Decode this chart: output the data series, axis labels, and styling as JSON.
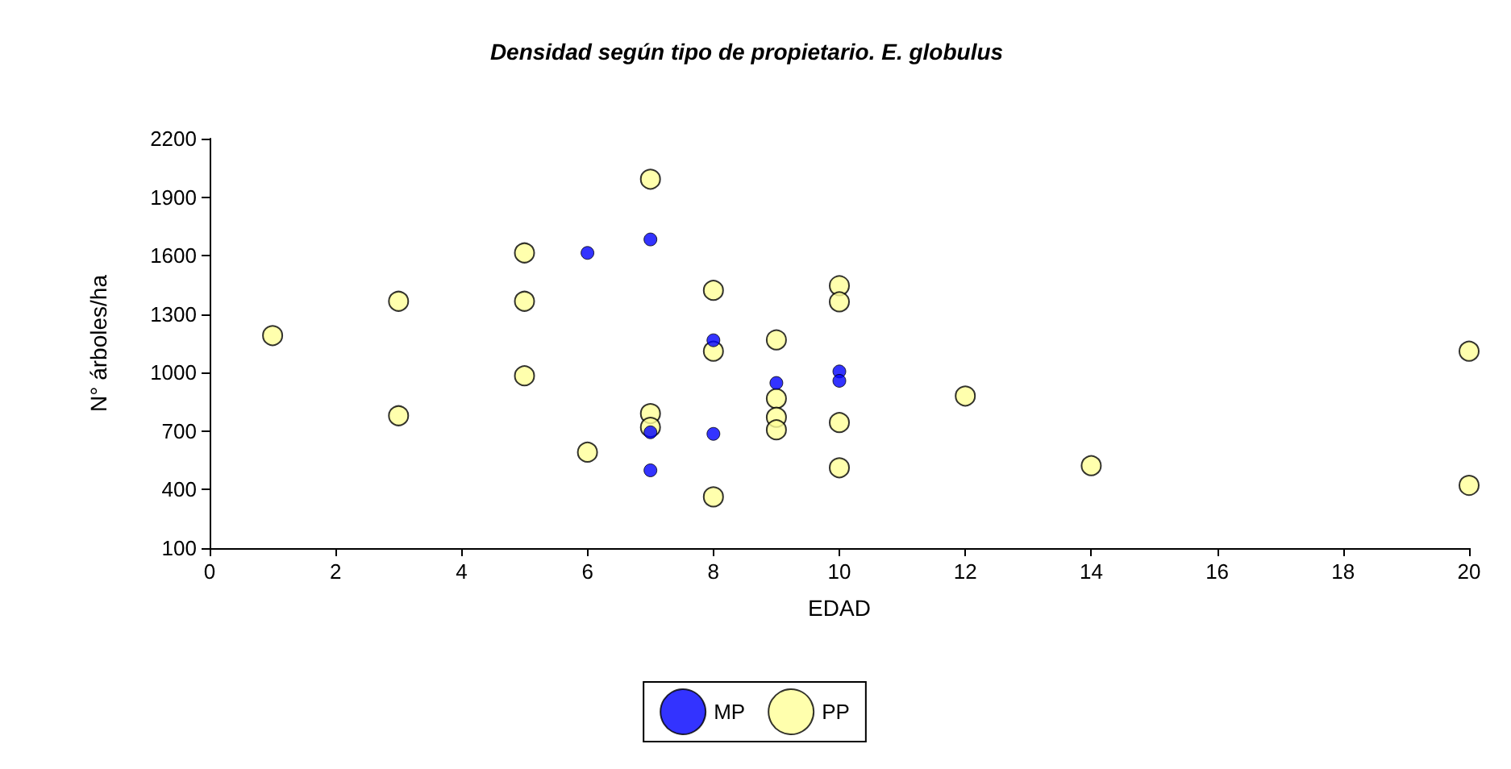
{
  "chart_data": {
    "type": "scatter",
    "title": "Densidad según tipo de propietario. E. globulus",
    "xlabel": "EDAD",
    "ylabel": "N° árboles/ha",
    "xlim": [
      0,
      20
    ],
    "xticks": [
      0,
      2,
      4,
      6,
      8,
      10,
      12,
      14,
      16,
      18,
      20
    ],
    "ylim": [
      100,
      2200
    ],
    "yticks": [
      100,
      400,
      700,
      1000,
      1300,
      1600,
      1900,
      2200
    ],
    "grid": false,
    "legend": "bottom",
    "marker": "circle",
    "series": [
      {
        "name": "MP",
        "color": "#0000ff",
        "x": [
          6,
          7,
          7,
          7,
          8,
          8,
          9,
          10,
          10
        ],
        "values": [
          1614,
          1683,
          694,
          499,
          1166,
          686,
          947,
          1006,
          958
        ]
      },
      {
        "name": "PP",
        "color": "#ffff99",
        "x": [
          1,
          3,
          3,
          5,
          5,
          5,
          6,
          7,
          7,
          7,
          8,
          8,
          8,
          9,
          9,
          9,
          9,
          10,
          10,
          10,
          10,
          12,
          14,
          20,
          20
        ],
        "values": [
          1190,
          1366,
          779,
          1614,
          1366,
          984,
          592,
          1992,
          790,
          720,
          1422,
          1110,
          363,
          1168,
          867,
          771,
          707,
          1446,
          1363,
          744,
          512,
          880,
          523,
          1110,
          422
        ]
      }
    ]
  }
}
